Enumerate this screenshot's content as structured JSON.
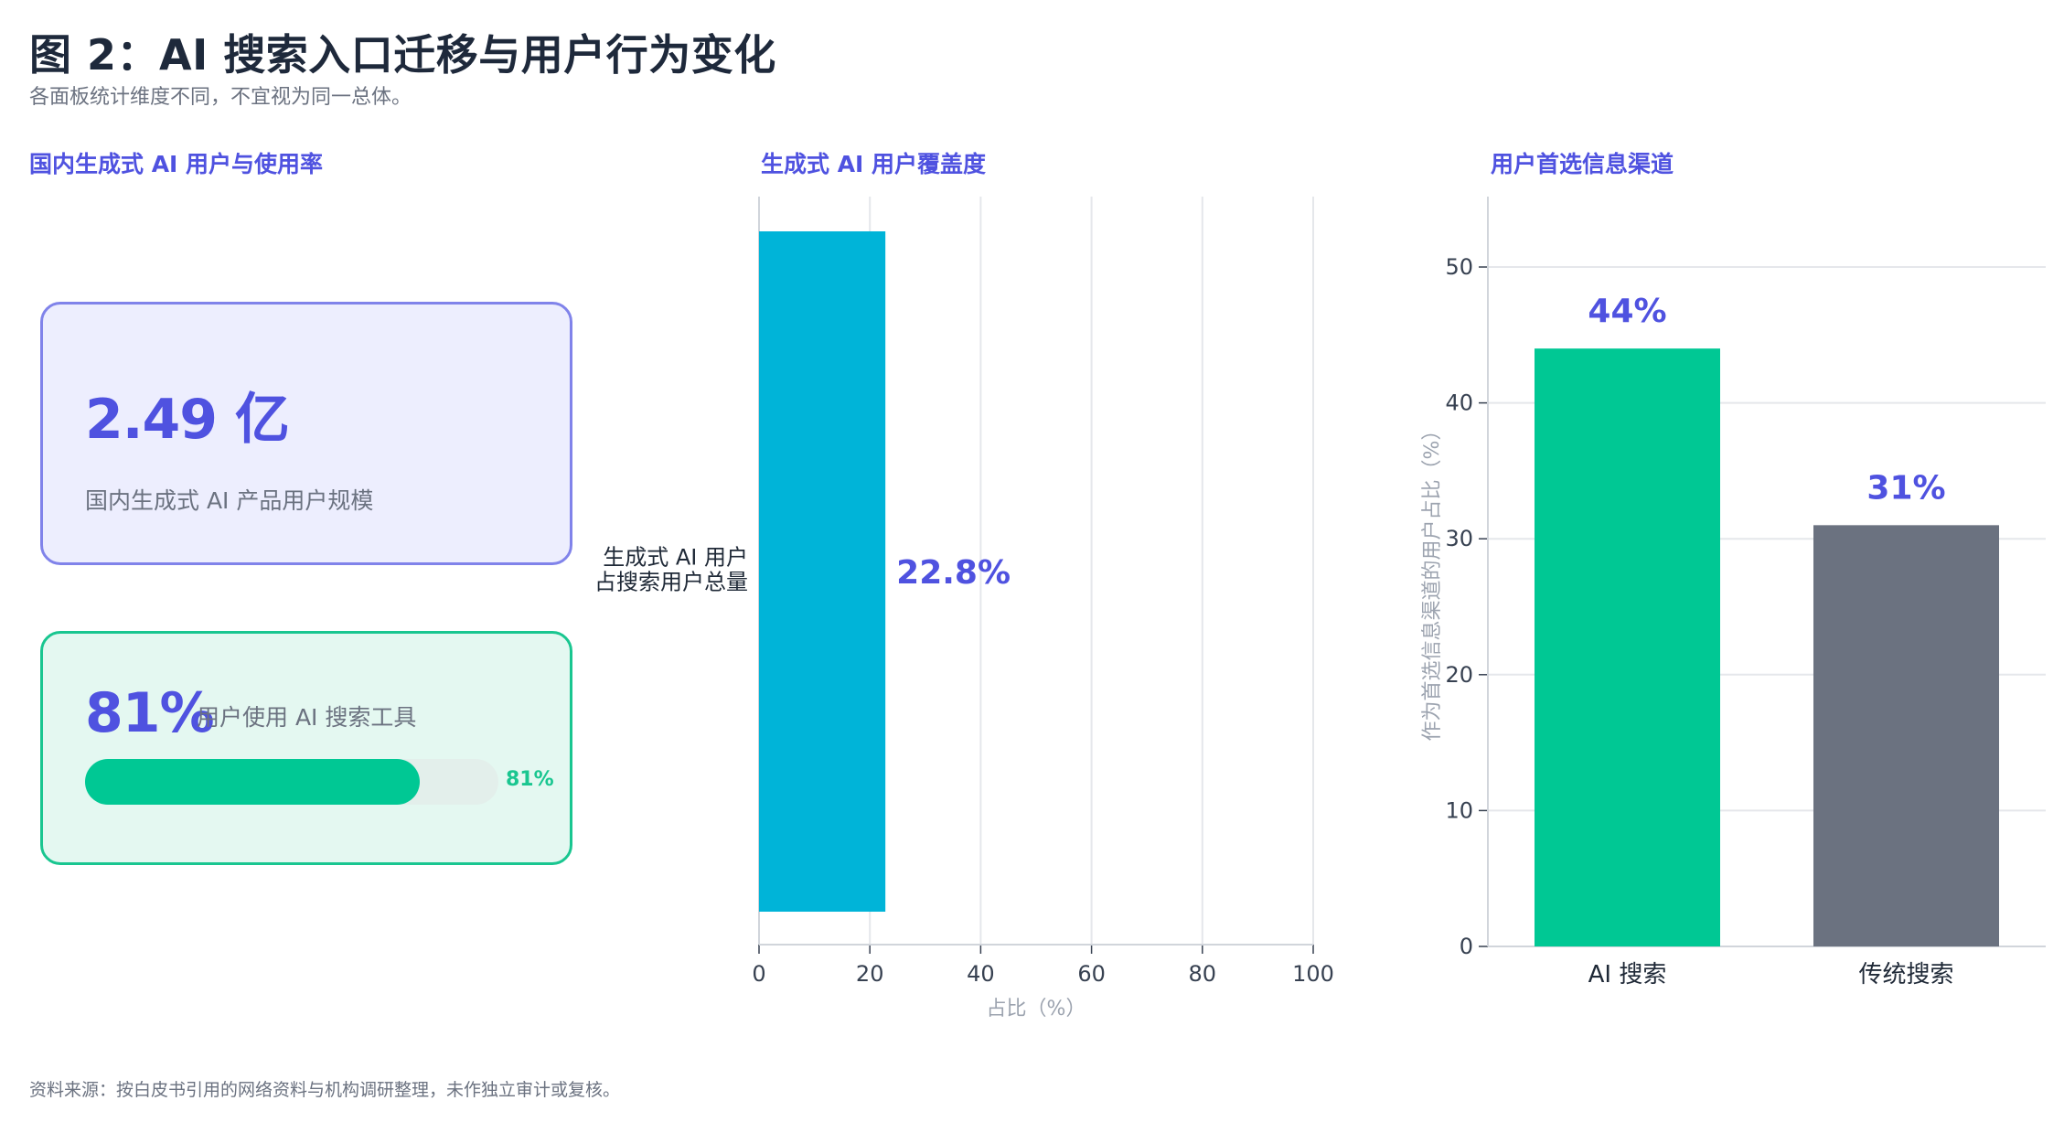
{
  "header": {
    "title": "图 2：AI 搜索入口迁移与用户行为变化",
    "subtitle": "各面板统计维度不同，不宜视为同一总体。"
  },
  "panels": {
    "left": {
      "title": "国内生成式 AI 用户与使用率",
      "card1": {
        "value": "2.49 亿",
        "label": "国内生成式 AI 产品用户规模"
      },
      "card2": {
        "value": "81%",
        "label": "用户使用 AI 搜索工具",
        "progress": 0.81,
        "progress_label": "81%"
      }
    },
    "middle": {
      "title": "生成式 AI 用户覆盖度"
    },
    "right": {
      "title": "用户首选信息渠道"
    }
  },
  "footer": {
    "source": "资料来源：按白皮书引用的网络资料与机构调研整理，未作独立审计或复核。"
  },
  "colors": {
    "accent": "#4f52e0",
    "teal": "#00b4d8",
    "green": "#00c894",
    "gray": "#6b7280"
  },
  "chart_data": [
    {
      "type": "bar",
      "orientation": "horizontal",
      "categories": [
        "生成式 AI 用户\n占搜索用户总量"
      ],
      "values": [
        22.8
      ],
      "data_labels": [
        "22.8%"
      ],
      "xlabel": "占比（%）",
      "xlim": [
        0,
        100
      ],
      "xticks": [
        0,
        20,
        40,
        60,
        80,
        100
      ],
      "grid": "vertical",
      "color": "#00b4d8"
    },
    {
      "type": "bar",
      "categories": [
        "AI 搜索",
        "传统搜索"
      ],
      "values": [
        44,
        31
      ],
      "data_labels": [
        "44%",
        "31%"
      ],
      "ylabel": "作为首选信息渠道的用户占比（%）",
      "ylim": [
        0,
        50
      ],
      "yticks": [
        0,
        10,
        20,
        30,
        40,
        50
      ],
      "grid": "horizontal",
      "colors": [
        "#00c894",
        "#6b7280"
      ]
    }
  ]
}
